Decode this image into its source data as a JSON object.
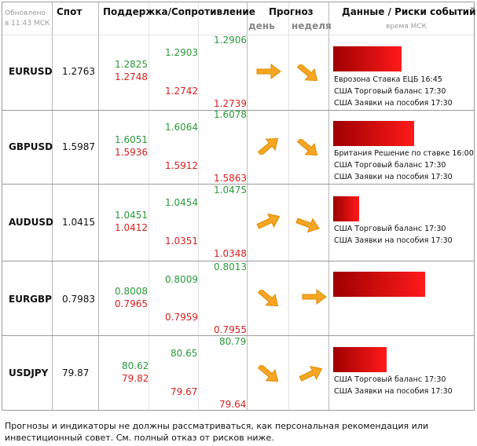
{
  "header": {
    "updated_label": "Обновлено",
    "updated_time": "в 11:43 МСК",
    "spot": "Спот",
    "support_resistance": "Поддержка/Сопротивление",
    "forecast": "Прогноз",
    "day": "день",
    "week": "неделя",
    "events": "Данные / Риски событий",
    "events_time": "время МСК"
  },
  "rows": [
    {
      "pair": "EURUSD",
      "spot": "1.2763",
      "s1_res": "1.2825",
      "s1_sup": "1.2748",
      "s2_res": "1.2903",
      "s2_sup": "1.2742",
      "s3_res": "1.2906",
      "s3_sup": "1.2739",
      "day_icon": "arrow-right-icon",
      "week_icon": "arrow-down-right-icon",
      "risk_level": 0.75,
      "events": [
        "Еврозона Ставка ЕЦБ 16:45",
        "США Торговый баланс 17:30",
        "США Заявки на пособия 17:30"
      ]
    },
    {
      "pair": "GBPUSD",
      "spot": "1.5987",
      "s1_res": "1.6051",
      "s1_sup": "1.5936",
      "s2_res": "1.6064",
      "s2_sup": "1.5912",
      "s3_res": "1.6078",
      "s3_sup": "1.5863",
      "day_icon": "arrow-up-right-icon",
      "week_icon": "arrow-down-right-icon",
      "risk_level": 0.9,
      "events": [
        "Британия Решение по ставке 16:00",
        "США Торговый баланс 17:30",
        "США Заявки на пособия 17:30"
      ]
    },
    {
      "pair": "AUDUSD",
      "spot": "1.0415",
      "s1_res": "1.0451",
      "s1_sup": "1.0412",
      "s2_res": "1.0454",
      "s2_sup": "1.0351",
      "s3_res": "1.0475",
      "s3_sup": "1.0348",
      "day_icon": "arrow-up-right-icon",
      "week_icon": "arrow-down-right-icon",
      "risk_level": 0.3,
      "events": [
        "США Торговый баланс 17:30",
        "США Заявки на пособия 17:30"
      ]
    },
    {
      "pair": "EURGBP",
      "spot": "0.7983",
      "s1_res": "0.8008",
      "s1_sup": "0.7965",
      "s2_res": "0.8009",
      "s2_sup": "0.7959",
      "s3_res": "0.8013",
      "s3_sup": "0.7955",
      "day_icon": "arrow-down-right-icon",
      "week_icon": "arrow-right-icon",
      "risk_level": 1.0,
      "events": []
    },
    {
      "pair": "USDJPY",
      "spot": "79.87",
      "s1_res": "80.62",
      "s1_sup": "79.82",
      "s2_res": "80.65",
      "s2_sup": "79.67",
      "s3_res": "80.79",
      "s3_sup": "79.64",
      "day_icon": "arrow-down-right-icon",
      "week_icon": "arrow-up-right-icon",
      "risk_level": 0.6,
      "events": [
        "США Торговый баланс 17:30",
        "США Заявки на пособия 17:30"
      ]
    }
  ],
  "footer": "Прогнозы и индикаторы не должны рассматриваться, как персональная рекомендация или инвестиционный совет. См. полный отказ от рисков ниже.",
  "colors": {
    "support": "#2a9a3a",
    "resistance": "#d62020",
    "arrow": "#f5a623",
    "bar_dark": "#9e0000",
    "bar_light": "#ff1a1a"
  }
}
